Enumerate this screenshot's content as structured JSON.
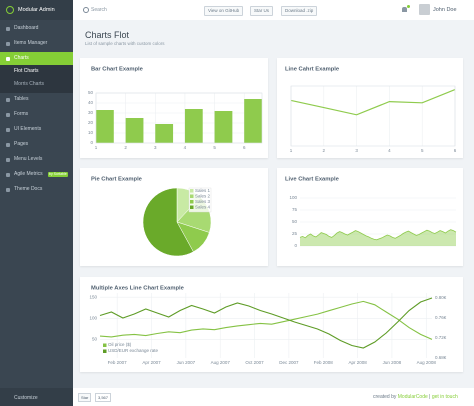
{
  "brand": "Modular Admin",
  "header": {
    "search": "Search",
    "buttons": [
      "View on GitHub",
      "Star Us",
      "Download .zip"
    ],
    "user": "John Doe"
  },
  "sidebar": {
    "items": [
      "Dashboard",
      "Items Manager",
      "Charts",
      "Tables",
      "Forms",
      "UI Elements",
      "Pages",
      "Menu Levels",
      "Agile Metrics",
      "Theme Docs"
    ],
    "submenu": [
      "Flot Charts",
      "Morris Charts"
    ],
    "badge": "by Sortable",
    "customize": "Customize"
  },
  "page": {
    "title": "Charts Flot",
    "subtitle": "List of sample charts with custom colors"
  },
  "chart_data": [
    {
      "type": "bar",
      "title": "Bar Chart Example",
      "x": [
        1,
        2,
        3,
        4,
        5,
        6
      ],
      "values": [
        33,
        25,
        19,
        34,
        32,
        44
      ],
      "color": "#8fcb4d",
      "xlim": [
        1,
        6.6
      ],
      "xticks": [
        1,
        2,
        3,
        4,
        5,
        6
      ],
      "ylim": [
        0,
        50
      ],
      "yticks": [
        0,
        10,
        20,
        30,
        40,
        50
      ],
      "grid": true
    },
    {
      "type": "line",
      "title": "Line Cahrt Example",
      "x": [
        1,
        2,
        3,
        4,
        5,
        6
      ],
      "values": [
        38,
        32,
        26,
        37,
        36,
        47
      ],
      "color": "#8fcb4d",
      "xlim": [
        1,
        6
      ],
      "xticks": [
        1,
        2,
        3,
        4,
        5,
        6
      ],
      "ylim": [
        0,
        50
      ],
      "grid": true
    },
    {
      "type": "pie",
      "title": "Pie Chart Example",
      "categories": [
        "Sales 1",
        "Sales 2",
        "Sales 3",
        "Sales 4"
      ],
      "values": [
        12,
        18,
        12,
        58
      ],
      "colors": [
        "#c8eaa4",
        "#a8da72",
        "#8fcb4d",
        "#6aaa2a"
      ],
      "legend": "top-right"
    },
    {
      "type": "area",
      "title": "Live Chart Example",
      "values": [
        18,
        20,
        17,
        22,
        25,
        21,
        19,
        23,
        28,
        26,
        24,
        20,
        18,
        22,
        27,
        30,
        28,
        25,
        23,
        26,
        29,
        32,
        30,
        27,
        24,
        21,
        19,
        16,
        14,
        13,
        15,
        17,
        20,
        23,
        21,
        18,
        16,
        19,
        22,
        26,
        29,
        31,
        28,
        25,
        22,
        24,
        27,
        30,
        33,
        31,
        28,
        26,
        29,
        32,
        30,
        27,
        31,
        34,
        32,
        29
      ],
      "color": "#8fcb4d",
      "ylim": [
        0,
        100
      ],
      "yticks": [
        0,
        25,
        50,
        75,
        100
      ],
      "grid": true
    },
    {
      "type": "multiaxis",
      "title": "Multiple Axes Line Chart Example",
      "series": [
        {
          "name": "Oil price ($)",
          "color": "#85c244",
          "values": [
            58,
            56,
            60,
            62,
            59,
            64,
            68,
            66,
            72,
            75,
            73,
            78,
            82,
            85,
            88,
            86,
            92,
            98,
            104,
            110,
            118,
            126,
            134,
            140,
            132,
            115,
            98,
            78,
            62,
            50
          ]
        },
        {
          "name": "USD/EUR exchange rate",
          "color": "#5e9c26",
          "axis": "y2",
          "values": [
            0.765,
            0.772,
            0.76,
            0.768,
            0.778,
            0.77,
            0.762,
            0.775,
            0.785,
            0.778,
            0.77,
            0.782,
            0.79,
            0.784,
            0.775,
            0.768,
            0.76,
            0.752,
            0.745,
            0.738,
            0.728,
            0.715,
            0.705,
            0.7,
            0.712,
            0.73,
            0.752,
            0.775,
            0.792,
            0.8
          ]
        }
      ],
      "xlim": [
        0,
        29
      ],
      "xticks": [
        {
          "value": 1.5,
          "label": "Feb 2007"
        },
        {
          "value": 4.5,
          "label": "Apr 2007"
        },
        {
          "value": 7.5,
          "label": "Jun 2007"
        },
        {
          "value": 10.5,
          "label": "Aug 2007"
        },
        {
          "value": 13.5,
          "label": "Oct 2007"
        },
        {
          "value": 16.5,
          "label": "Dec 2007"
        },
        {
          "value": 19.5,
          "label": "Feb 2008"
        },
        {
          "value": 22.5,
          "label": "Apr 2008"
        },
        {
          "value": 25.5,
          "label": "Jun 2008"
        },
        {
          "value": 28.5,
          "label": "Aug 2008"
        }
      ],
      "ylim": [
        6,
        160
      ],
      "yticks": [
        50,
        100,
        150
      ],
      "y2lim": [
        0.68,
        0.81
      ],
      "y2ticks": [
        {
          "value": 0.68,
          "label": "0.68€"
        },
        {
          "value": 0.72,
          "label": "0.72€"
        },
        {
          "value": 0.76,
          "label": "0.76€"
        },
        {
          "value": 0.8,
          "label": "0.80€"
        }
      ],
      "grid": true,
      "legend": "bottom-left"
    }
  ],
  "footer": {
    "star": "Star",
    "count": "3,567",
    "credit": "created by",
    "author": "ModularCode",
    "separator": "|",
    "contact": "get in touch"
  }
}
